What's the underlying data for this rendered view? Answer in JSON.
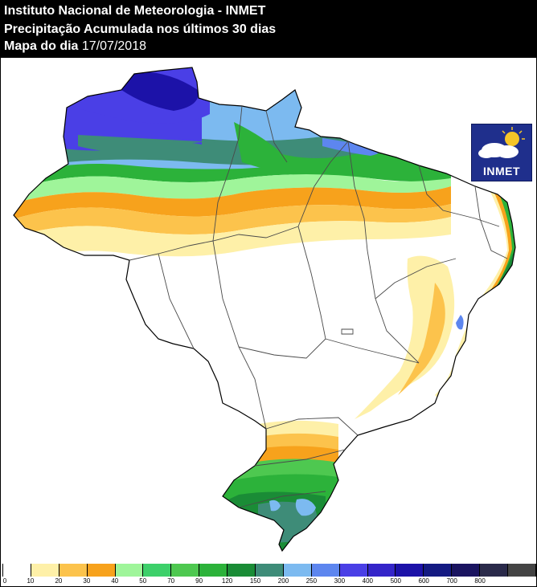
{
  "header": {
    "line1": "Instituto Nacional de Meteorologia - INMET",
    "line2": "Precipitação Acumulada nos últimos 30 dias",
    "line3_label": "Mapa do dia",
    "line3_date": "17/07/2018"
  },
  "logo": {
    "text": "INMET",
    "icon": "cloud-sun-icon"
  },
  "legend": {
    "labels": [
      "0",
      "10",
      "20",
      "30",
      "40",
      "50",
      "70",
      "90",
      "120",
      "150",
      "200",
      "250",
      "300",
      "400",
      "500",
      "600",
      "700",
      "800"
    ],
    "colors": [
      "#ffffff",
      "#fef0a8",
      "#fcc34c",
      "#f7a21c",
      "#9ff59a",
      "#3dd06a",
      "#4ec850",
      "#2cb23a",
      "#1a8c36",
      "#3e8c78",
      "#7cbaf0",
      "#5d86ef",
      "#4a3fe6",
      "#3425c9",
      "#1c12a8",
      "#141a82",
      "#1a1460",
      "#2a2a4a",
      "#444444"
    ]
  },
  "colors": {
    "border": "#000000",
    "state_border": "#4a4a4a"
  }
}
